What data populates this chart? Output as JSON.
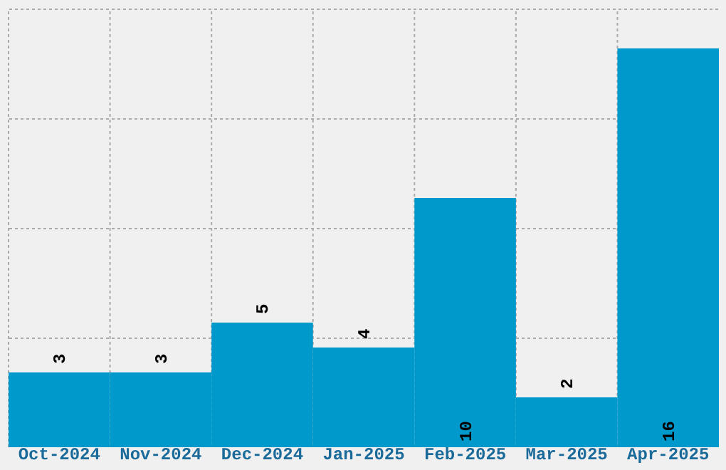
{
  "chart_data": {
    "type": "bar",
    "categories": [
      "Oct-2024",
      "Nov-2024",
      "Dec-2024",
      "Jan-2025",
      "Feb-2025",
      "Mar-2025",
      "Apr-2025"
    ],
    "values": [
      3,
      3,
      5,
      4,
      10,
      2,
      16
    ],
    "color": "#0099cc",
    "ylim": [
      0,
      17.6
    ],
    "yticks": [
      {
        "value": 4.4,
        "label": null
      },
      {
        "value": 8.8,
        "label": null
      },
      {
        "value": 13.2,
        "label": null
      },
      {
        "value": 17.6,
        "label": null
      }
    ],
    "tick_labels": "x",
    "grid": true,
    "data_labels": true
  }
}
